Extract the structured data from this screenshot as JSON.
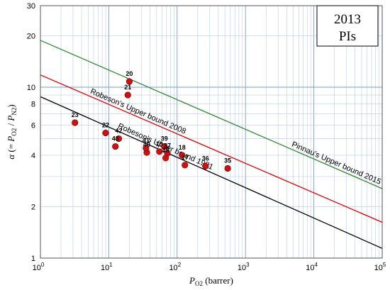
{
  "chart_data": {
    "type": "scatter",
    "title": "",
    "badge": {
      "line1": "2013",
      "line2": "PIs"
    },
    "xlabel": {
      "main": "P",
      "sub": "O2",
      "suffix": " (barrer)"
    },
    "ylabel": {
      "alpha": "α",
      "open": " (= ",
      "p1": "P",
      "s1": "O2",
      "slash": " / ",
      "p2": "P",
      "s2": "N2",
      "close": ")"
    },
    "x_scale": "log",
    "y_scale": "log",
    "xlim": [
      1,
      100000
    ],
    "ylim": [
      1,
      30
    ],
    "x_ticks": [
      {
        "value": 1,
        "base": "10",
        "exp": "0"
      },
      {
        "value": 10,
        "base": "10",
        "exp": "1"
      },
      {
        "value": 100,
        "base": "10",
        "exp": "2"
      },
      {
        "value": 1000,
        "base": "10",
        "exp": "3"
      },
      {
        "value": 10000,
        "base": "10",
        "exp": "4"
      },
      {
        "value": 100000,
        "base": "10",
        "exp": "5"
      }
    ],
    "y_ticks": [
      {
        "value": 1,
        "label": "1"
      },
      {
        "value": 2,
        "label": "2"
      },
      {
        "value": 4,
        "label": "4"
      },
      {
        "value": 6,
        "label": "6"
      },
      {
        "value": 8,
        "label": "8"
      },
      {
        "value": 10,
        "label": "10"
      },
      {
        "value": 20,
        "label": "20"
      },
      {
        "value": 30,
        "label": "30"
      }
    ],
    "grid": true,
    "upper_bounds": [
      {
        "name": "Robeson's Upper bound 1991",
        "color": "#000000",
        "points": [
          [
            1,
            8.8
          ],
          [
            100000,
            1.14
          ]
        ]
      },
      {
        "name": "Robeson's Upper bound 2008",
        "color": "#e00000",
        "points": [
          [
            1,
            11.8
          ],
          [
            100000,
            1.62
          ]
        ]
      },
      {
        "name": "Pinnau's Upper bound 2015",
        "color": "#2e8b2e",
        "points": [
          [
            1,
            18.8
          ],
          [
            100000,
            2.55
          ]
        ]
      }
    ],
    "points": [
      {
        "label": "17",
        "x": 130,
        "y": 3.5
      },
      {
        "label": "18",
        "x": 118,
        "y": 4.0
      },
      {
        "label": "19",
        "x": 55,
        "y": 4.2
      },
      {
        "label": "20",
        "x": 20,
        "y": 10.8
      },
      {
        "label": "21",
        "x": 19,
        "y": 9.0
      },
      {
        "label": "22",
        "x": 9,
        "y": 5.4
      },
      {
        "label": "23",
        "x": 3.2,
        "y": 6.2
      },
      {
        "label": "35",
        "x": 550,
        "y": 3.35
      },
      {
        "label": "36",
        "x": 260,
        "y": 3.45
      },
      {
        "label": "37",
        "x": 72,
        "y": 4.1
      },
      {
        "label": "38",
        "x": 68,
        "y": 3.85
      },
      {
        "label": "39",
        "x": 65,
        "y": 4.5
      },
      {
        "label": "40",
        "x": 36,
        "y": 4.15
      },
      {
        "label": "41",
        "x": 35,
        "y": 4.4
      },
      {
        "label": "42",
        "x": 14,
        "y": 5.0
      },
      {
        "label": "43",
        "x": 12.5,
        "y": 4.5
      }
    ],
    "marker_color": "#cc1111"
  }
}
